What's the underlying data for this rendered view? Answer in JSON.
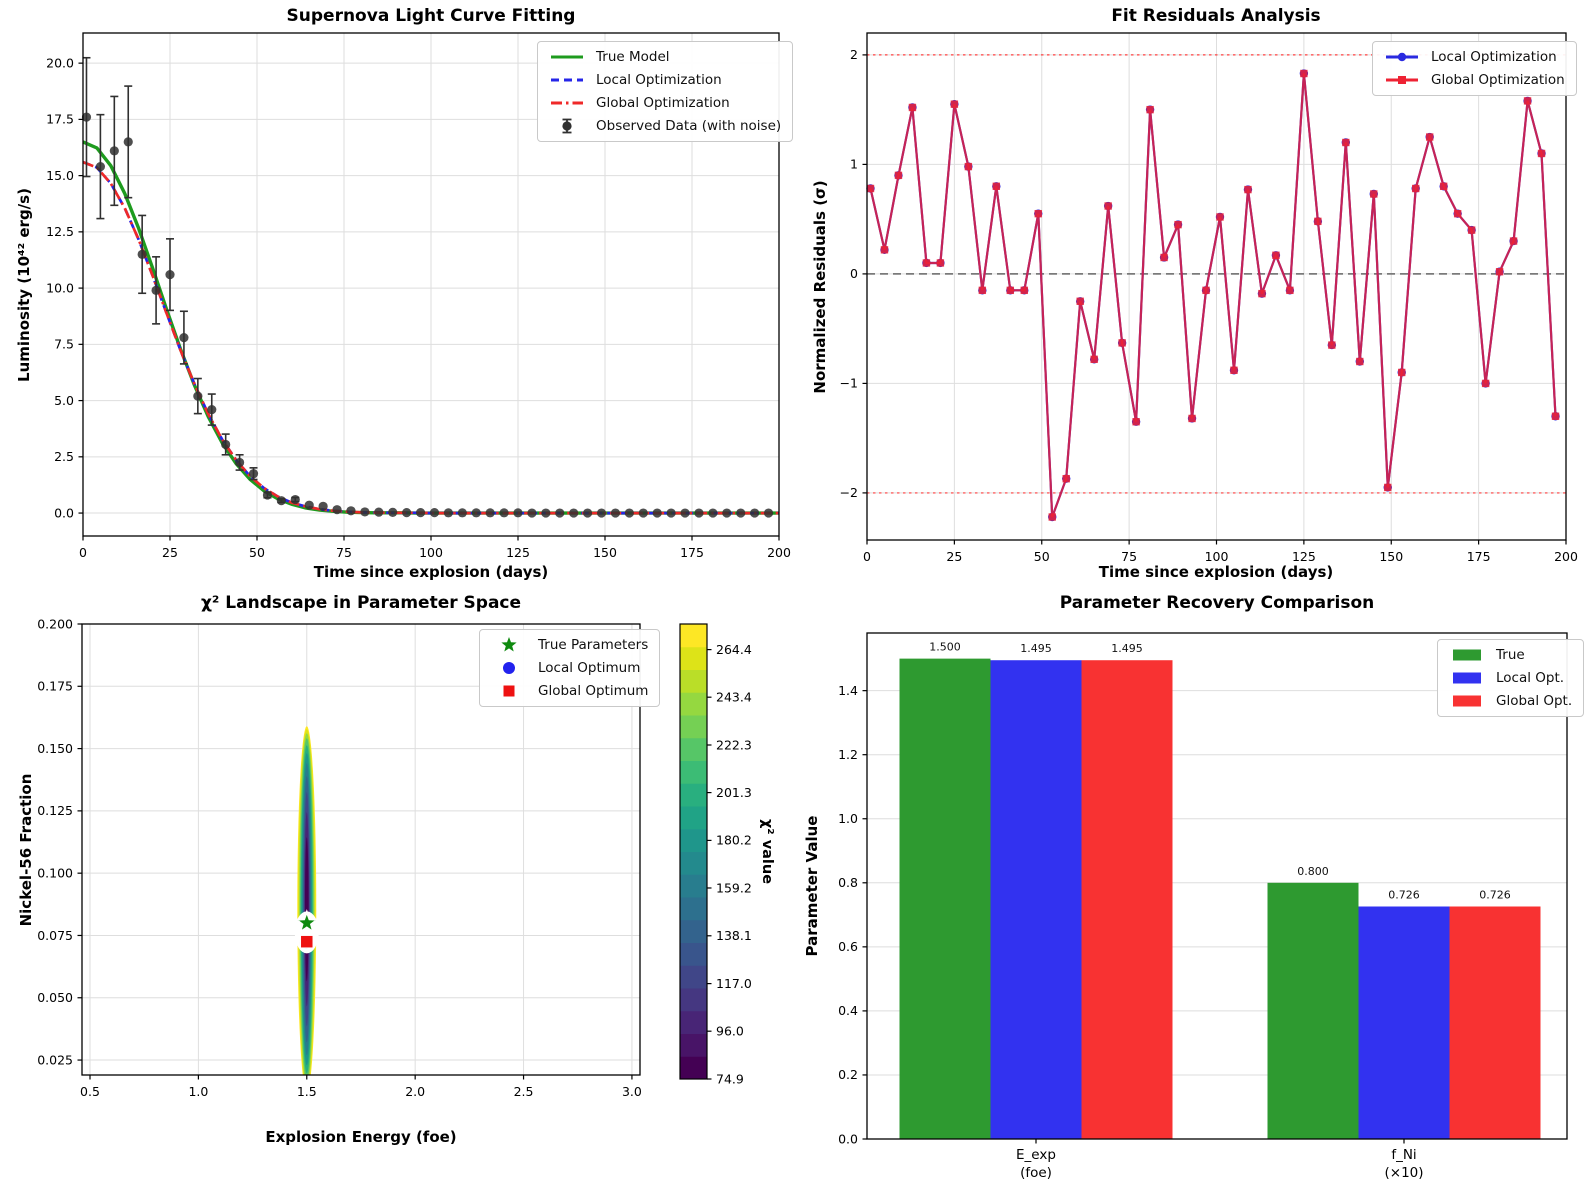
{
  "figure_bg": "#ffffff",
  "grid_color": "#dedede",
  "viridis": [
    "#440154",
    "#481467",
    "#482576",
    "#453781",
    "#404688",
    "#39558c",
    "#33638d",
    "#2d708e",
    "#287d8e",
    "#238a8d",
    "#1f968b",
    "#20a386",
    "#29af7f",
    "#3cbc75",
    "#56c667",
    "#75d054",
    "#95d840",
    "#bade28",
    "#dde318",
    "#fde725"
  ],
  "chart_data": [
    {
      "type": "line",
      "title": "Supernova Light Curve Fitting",
      "xlabel": "Time since explosion (days)",
      "ylabel": "Luminosity (10⁴² erg/s)",
      "xlim": [
        0,
        200
      ],
      "ylim": [
        -1.02,
        21.34
      ],
      "xticks": [
        0,
        25,
        50,
        75,
        100,
        125,
        150,
        175,
        200
      ],
      "xtick_labels": [
        "0",
        "25",
        "50",
        "75",
        "100",
        "125",
        "150",
        "175",
        "200"
      ],
      "yticks": [
        0,
        2.5,
        5,
        7.5,
        10,
        12.5,
        15,
        17.5,
        20
      ],
      "ytick_labels": [
        "0.0",
        "2.5",
        "5.0",
        "7.5",
        "10.0",
        "12.5",
        "15.0",
        "17.5",
        "20.0"
      ],
      "legend": [
        {
          "label": "True Model",
          "kind": "line",
          "style": "solid",
          "color": "#1e9b1e"
        },
        {
          "label": "Local Optimization",
          "kind": "line",
          "style": "dashed",
          "color": "#2525e8"
        },
        {
          "label": "Global Optimization",
          "kind": "line",
          "style": "dashdot",
          "color": "#ef2929"
        },
        {
          "label": "Observed Data (with noise)",
          "kind": "errorbar",
          "color": "#303030"
        }
      ],
      "model_x": [
        0,
        4,
        8,
        12,
        16,
        20,
        24,
        28,
        32,
        36,
        40,
        44,
        48,
        52,
        56,
        60,
        64,
        68,
        72,
        76,
        80,
        84,
        88,
        92,
        96,
        100,
        104,
        108,
        112,
        116,
        120,
        124,
        128,
        132,
        136,
        140,
        144,
        148,
        152,
        156,
        160,
        164,
        168,
        172,
        176,
        180,
        184,
        188,
        192,
        196,
        200
      ],
      "series": [
        {
          "name": "True Model",
          "color": "#1e9b1e",
          "style": "solid",
          "width": 3.4,
          "y": [
            16.5,
            16.23,
            15.44,
            14.2,
            12.65,
            10.89,
            9.06,
            7.3,
            5.69,
            4.28,
            3.12,
            2.2,
            1.5,
            0.99,
            0.63,
            0.39,
            0.23,
            0.13,
            0.08,
            0.04,
            0.02,
            0.01,
            0.01,
            0.01,
            0,
            0,
            0,
            0,
            0,
            0,
            0,
            0,
            0,
            0,
            0,
            0,
            0,
            0,
            0,
            0,
            0,
            0,
            0,
            0,
            0,
            0,
            0,
            0,
            0,
            0,
            0
          ]
        },
        {
          "name": "Local Optimization",
          "color": "#2525e8",
          "style": "dashed",
          "width": 2.7,
          "y": [
            15.6,
            15.36,
            14.65,
            13.55,
            12.15,
            10.55,
            8.89,
            7.25,
            5.74,
            4.4,
            3.27,
            2.36,
            1.64,
            1.11,
            0.73,
            0.46,
            0.29,
            0.17,
            0.1,
            0.06,
            0.03,
            0.02,
            0.01,
            0.01,
            0.01,
            0,
            0,
            0,
            0,
            0,
            0,
            0,
            0,
            0,
            0,
            0,
            0,
            0,
            0,
            0,
            0,
            0,
            0,
            0,
            0,
            0,
            0,
            0,
            0,
            0,
            0
          ]
        },
        {
          "name": "Global Optimization",
          "color": "#ef2929",
          "style": "dashdot",
          "width": 2.7,
          "y": [
            15.6,
            15.36,
            14.65,
            13.55,
            12.15,
            10.55,
            8.89,
            7.25,
            5.74,
            4.4,
            3.27,
            2.36,
            1.64,
            1.11,
            0.73,
            0.46,
            0.29,
            0.17,
            0.1,
            0.06,
            0.03,
            0.02,
            0.01,
            0.01,
            0.01,
            0,
            0,
            0,
            0,
            0,
            0,
            0,
            0,
            0,
            0,
            0,
            0,
            0,
            0,
            0,
            0,
            0,
            0,
            0,
            0,
            0,
            0,
            0,
            0,
            0,
            0
          ]
        }
      ],
      "observed": {
        "name": "Observed Data (with noise)",
        "color": "#303030",
        "x": [
          1,
          5,
          9,
          13,
          17,
          21,
          25,
          29,
          33,
          37,
          41,
          45,
          49,
          53,
          57,
          61,
          65,
          69,
          73,
          77,
          81,
          85,
          89,
          93,
          97,
          101,
          105,
          109,
          113,
          117,
          121,
          125,
          129,
          133,
          137,
          141,
          145,
          149,
          153,
          157,
          161,
          165,
          169,
          173,
          177,
          181,
          185,
          189,
          193,
          197
        ],
        "y": [
          17.6,
          15.4,
          16.1,
          16.5,
          11.5,
          9.9,
          10.6,
          7.8,
          5.2,
          4.6,
          3.05,
          2.25,
          1.75,
          0.8,
          0.55,
          0.6,
          0.35,
          0.3,
          0.15,
          0.1,
          0.05,
          0.04,
          0.03,
          0.02,
          0.02,
          0.02,
          0.01,
          0.01,
          0.01,
          0.01,
          0.01,
          0.01,
          0,
          0,
          0,
          0,
          0,
          0,
          0,
          0,
          0,
          0,
          0,
          0,
          0,
          0,
          0,
          0,
          0,
          0
        ],
        "yerr": [
          2.64,
          2.31,
          2.42,
          2.48,
          1.73,
          1.49,
          1.59,
          1.17,
          0.78,
          0.69,
          0.46,
          0.34,
          0.26,
          0.12,
          0.08,
          0.09,
          0.05,
          0.05,
          0.02,
          0.02,
          0.01,
          0.01,
          0.01,
          0,
          0,
          0,
          0,
          0,
          0,
          0,
          0,
          0,
          0,
          0,
          0,
          0,
          0,
          0,
          0,
          0,
          0,
          0,
          0,
          0,
          0,
          0,
          0,
          0,
          0,
          0
        ]
      }
    },
    {
      "type": "line",
      "title": "Fit Residuals Analysis",
      "xlabel": "Time since explosion (days)",
      "ylabel": "Normalized Residuals (σ)",
      "xlim": [
        0,
        200
      ],
      "ylim": [
        -2.43,
        2.2
      ],
      "xticks": [
        0,
        25,
        50,
        75,
        100,
        125,
        150,
        175,
        200
      ],
      "xtick_labels": [
        "0",
        "25",
        "50",
        "75",
        "100",
        "125",
        "150",
        "175",
        "200"
      ],
      "yticks": [
        -2,
        -1,
        0,
        1,
        2
      ],
      "ytick_labels": [
        "−2",
        "−1",
        "0",
        "1",
        "2"
      ],
      "hlines": [
        {
          "y": 0,
          "color": "#7a7a7a",
          "style": "dashed",
          "width": 1.8
        },
        {
          "y": 2,
          "color": "#ff4040",
          "style": "dotted",
          "width": 1.2
        },
        {
          "y": -2,
          "color": "#ff4040",
          "style": "dotted",
          "width": 1.2
        }
      ],
      "x": [
        1,
        5,
        9,
        13,
        17,
        21,
        25,
        29,
        33,
        37,
        41,
        45,
        49,
        53,
        57,
        61,
        65,
        69,
        73,
        77,
        81,
        85,
        89,
        93,
        97,
        101,
        105,
        109,
        113,
        117,
        121,
        125,
        129,
        133,
        137,
        141,
        145,
        149,
        153,
        157,
        161,
        165,
        169,
        173,
        177,
        181,
        185,
        189,
        193,
        197
      ],
      "series": [
        {
          "name": "Local Optimization",
          "color": "#2a2ae0",
          "marker": "circle",
          "y": [
            0.78,
            0.22,
            0.9,
            1.52,
            0.1,
            0.1,
            1.55,
            0.98,
            -0.15,
            0.8,
            -0.15,
            -0.15,
            0.55,
            -2.22,
            -1.87,
            -0.25,
            -0.78,
            0.62,
            -0.63,
            -1.35,
            1.5,
            0.15,
            0.45,
            -1.32,
            -0.15,
            0.52,
            -0.88,
            0.77,
            -0.18,
            0.17,
            -0.15,
            1.83,
            0.48,
            -0.65,
            1.2,
            -0.8,
            0.73,
            -1.95,
            -0.9,
            0.78,
            1.25,
            0.8,
            0.55,
            0.4,
            -1.0,
            0.02,
            0.3,
            1.58,
            1.1,
            -1.3
          ]
        },
        {
          "name": "Global Optimization",
          "color": "#ee2233",
          "marker": "square",
          "y": [
            0.78,
            0.22,
            0.9,
            1.52,
            0.1,
            0.1,
            1.55,
            0.98,
            -0.15,
            0.8,
            -0.15,
            -0.15,
            0.55,
            -2.22,
            -1.87,
            -0.25,
            -0.78,
            0.62,
            -0.63,
            -1.35,
            1.5,
            0.15,
            0.45,
            -1.32,
            -0.15,
            0.52,
            -0.88,
            0.77,
            -0.18,
            0.17,
            -0.15,
            1.83,
            0.48,
            -0.65,
            1.2,
            -0.8,
            0.73,
            -1.95,
            -0.9,
            0.78,
            1.25,
            0.8,
            0.55,
            0.4,
            -1.0,
            0.02,
            0.3,
            1.58,
            1.1,
            -1.3
          ]
        }
      ]
    },
    {
      "type": "contour",
      "title": "χ² Landscape in Parameter Space",
      "xlabel": "Explosion Energy (foe)",
      "ylabel": "Nickel-56 Fraction",
      "xlim": [
        0.4631,
        3.0372
      ],
      "ylim": [
        0.019,
        0.2
      ],
      "xticks": [
        0.5,
        1.0,
        1.5,
        2.0,
        2.5,
        3.0
      ],
      "xtick_labels": [
        "0.5",
        "1.0",
        "1.5",
        "2.0",
        "2.5",
        "3.0"
      ],
      "yticks": [
        0.025,
        0.05,
        0.075,
        0.1,
        0.125,
        0.15,
        0.175,
        0.2
      ],
      "ytick_labels": [
        "0.025",
        "0.050",
        "0.075",
        "0.100",
        "0.125",
        "0.150",
        "0.175",
        "0.200"
      ],
      "contour": {
        "center_E": 1.5,
        "f_extent": [
          0.011,
          0.158
        ],
        "f_center": 0.0855
      },
      "markers": [
        {
          "label": "True Parameters",
          "marker": "star",
          "color": "#0f8a0f",
          "E": 1.5,
          "f": 0.08
        },
        {
          "label": "Local Optimum",
          "marker": "circle",
          "color": "#2222ee",
          "E": 1.497,
          "f": 0.0722
        },
        {
          "label": "Global Optimum",
          "marker": "square",
          "color": "#ee1111",
          "E": 1.5,
          "f": 0.0725
        }
      ],
      "colorbar": {
        "label": "χ² value",
        "vmin": 74.9,
        "vmax": 275.7,
        "ticks": [
          74.9,
          96.0,
          117.0,
          138.1,
          159.2,
          180.2,
          201.3,
          222.3,
          243.4,
          264.4
        ],
        "tick_labels": [
          "74.9",
          "96.0",
          "117.0",
          "138.1",
          "159.2",
          "180.2",
          "201.3",
          "222.3",
          "243.4",
          "264.4"
        ]
      }
    },
    {
      "type": "bar",
      "title": "Parameter Recovery Comparison",
      "ylabel": "Parameter Value",
      "ylim": [
        0,
        1.58
      ],
      "yticks": [
        0,
        0.2,
        0.4,
        0.6,
        0.8,
        1.0,
        1.2,
        1.4
      ],
      "ytick_labels": [
        "0.0",
        "0.2",
        "0.4",
        "0.6",
        "0.8",
        "1.0",
        "1.2",
        "1.4"
      ],
      "categories": [
        {
          "name": "E_exp",
          "unit": "(foe)"
        },
        {
          "name": "f_Ni",
          "unit": "(×10)"
        }
      ],
      "series": [
        {
          "name": "True",
          "color": "#2e9a30",
          "values": [
            1.5,
            0.8
          ]
        },
        {
          "name": "Local Opt.",
          "color": "#3232f0",
          "values": [
            1.495,
            0.726
          ]
        },
        {
          "name": "Global Opt.",
          "color": "#f83232",
          "values": [
            1.495,
            0.726
          ]
        }
      ],
      "value_labels": [
        [
          "1.500",
          "1.495",
          "1.495"
        ],
        [
          "0.800",
          "0.726",
          "0.726"
        ]
      ]
    }
  ]
}
